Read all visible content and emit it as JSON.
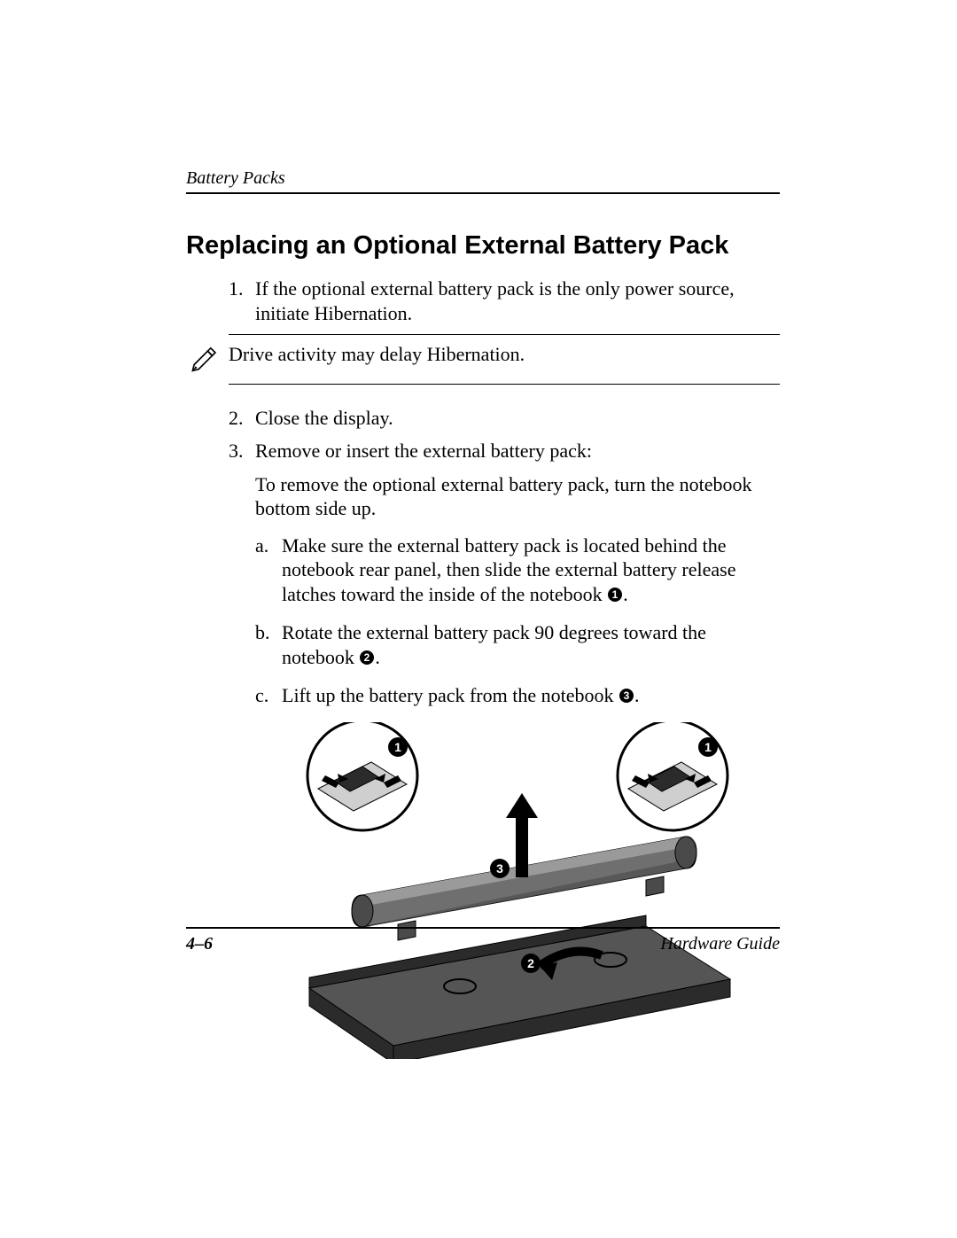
{
  "header": {
    "running_head": "Battery Packs"
  },
  "title": "Replacing an Optional External Battery Pack",
  "steps": {
    "s1_num": "1.",
    "s1_text": "If the optional external battery pack is the only power source, initiate Hibernation.",
    "note_text": "Drive activity may delay Hibernation.",
    "s2_num": "2.",
    "s2_text": "Close the display.",
    "s3_num": "3.",
    "s3_text": "Remove or insert the external battery pack:",
    "s3_para": "To remove the optional external battery pack, turn the notebook bottom side up.",
    "a_letter": "a.",
    "a_text_before": "Make sure the external battery pack is located behind the notebook rear panel, then slide the external battery release latches toward the inside of the notebook ",
    "a_text_after": ".",
    "b_letter": "b.",
    "b_text_before": "Rotate the external battery pack 90 degrees toward the notebook ",
    "b_text_after": ".",
    "c_letter": "c.",
    "c_text_before": "Lift up the battery pack from the notebook ",
    "c_text_after": "."
  },
  "callouts": {
    "one": "1",
    "two": "2",
    "three": "3"
  },
  "figure": {
    "colors": {
      "outline": "#000000",
      "battery_dark": "#4a4a4a",
      "battery_mid": "#6f6f6f",
      "battery_light": "#9a9a9a",
      "notebook_dark": "#2b2b2b",
      "notebook_mid": "#555555",
      "callout_bg": "#000000",
      "callout_fg": "#ffffff",
      "detail_fill": "#cfcfcf"
    }
  },
  "footer": {
    "page": "4–6",
    "doc": "Hardware Guide"
  },
  "typography": {
    "body_pt": 22,
    "title_pt": 29,
    "footer_pt": 20
  }
}
